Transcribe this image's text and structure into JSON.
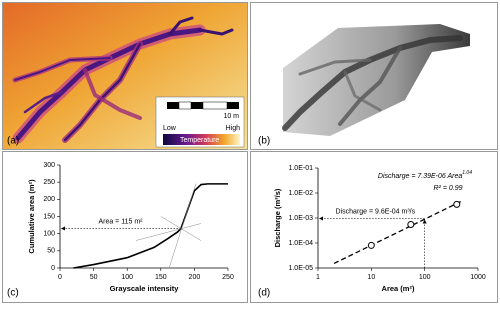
{
  "images": {
    "a": {
      "label": "(a)",
      "scale_bar": "10 m",
      "legend_low": "Low",
      "legend_high": "High",
      "legend_title": "Temperature"
    },
    "b": {
      "label": "(b)"
    }
  },
  "chart_data": [
    {
      "type": "line",
      "label": "(c)",
      "xlabel": "Grayscale intensity",
      "ylabel": "Cumulative area (m²)",
      "xlim": [
        0,
        250
      ],
      "ylim": [
        0,
        300
      ],
      "xticks": [
        0,
        50,
        100,
        150,
        200,
        250
      ],
      "yticks": [
        0,
        50,
        100,
        150,
        200,
        250,
        300
      ],
      "series": [
        {
          "color": "#000000",
          "x": [
            20,
            50,
            100,
            140,
            160,
            175,
            180,
            190,
            200,
            210,
            220,
            250
          ],
          "values": [
            0,
            10,
            30,
            60,
            85,
            105,
            115,
            170,
            225,
            243,
            245,
            245
          ]
        }
      ],
      "annotation": {
        "text": "Area = 115 m²",
        "x": 180,
        "y": 115
      }
    },
    {
      "type": "scatter",
      "label": "(d)",
      "xlabel": "Area (m²)",
      "ylabel": "Discharge (m³/s)",
      "xscale": "log",
      "yscale": "log",
      "xlim": [
        1,
        1000
      ],
      "ylim": [
        1e-05,
        0.1
      ],
      "xticks": [
        1,
        10,
        100,
        1000
      ],
      "yticks": [
        {
          "value": 1e-05,
          "label": "1.0E-05"
        },
        {
          "value": 0.0001,
          "label": "1.0E-04"
        },
        {
          "value": 0.001,
          "label": "1.0E-03"
        },
        {
          "value": 0.01,
          "label": "1.0E-02"
        },
        {
          "value": 0.1,
          "label": "1.0E-01"
        }
      ],
      "series": [
        {
          "color": "#000000",
          "x": [
            10,
            55,
            400
          ],
          "values": [
            8e-05,
            0.00055,
            0.0035
          ]
        }
      ],
      "fit": {
        "x": [
          2,
          500
        ],
        "values": [
          1.52e-05,
          0.0048
        ]
      },
      "equation": "Discharge = 7.39E-06 Area",
      "equation_exponent": "1.04",
      "r_squared": "R² = 0.99",
      "annotation": {
        "text": "Discharge = 9.6E-04 m³/s",
        "x": 100,
        "y": 0.00096
      }
    }
  ]
}
